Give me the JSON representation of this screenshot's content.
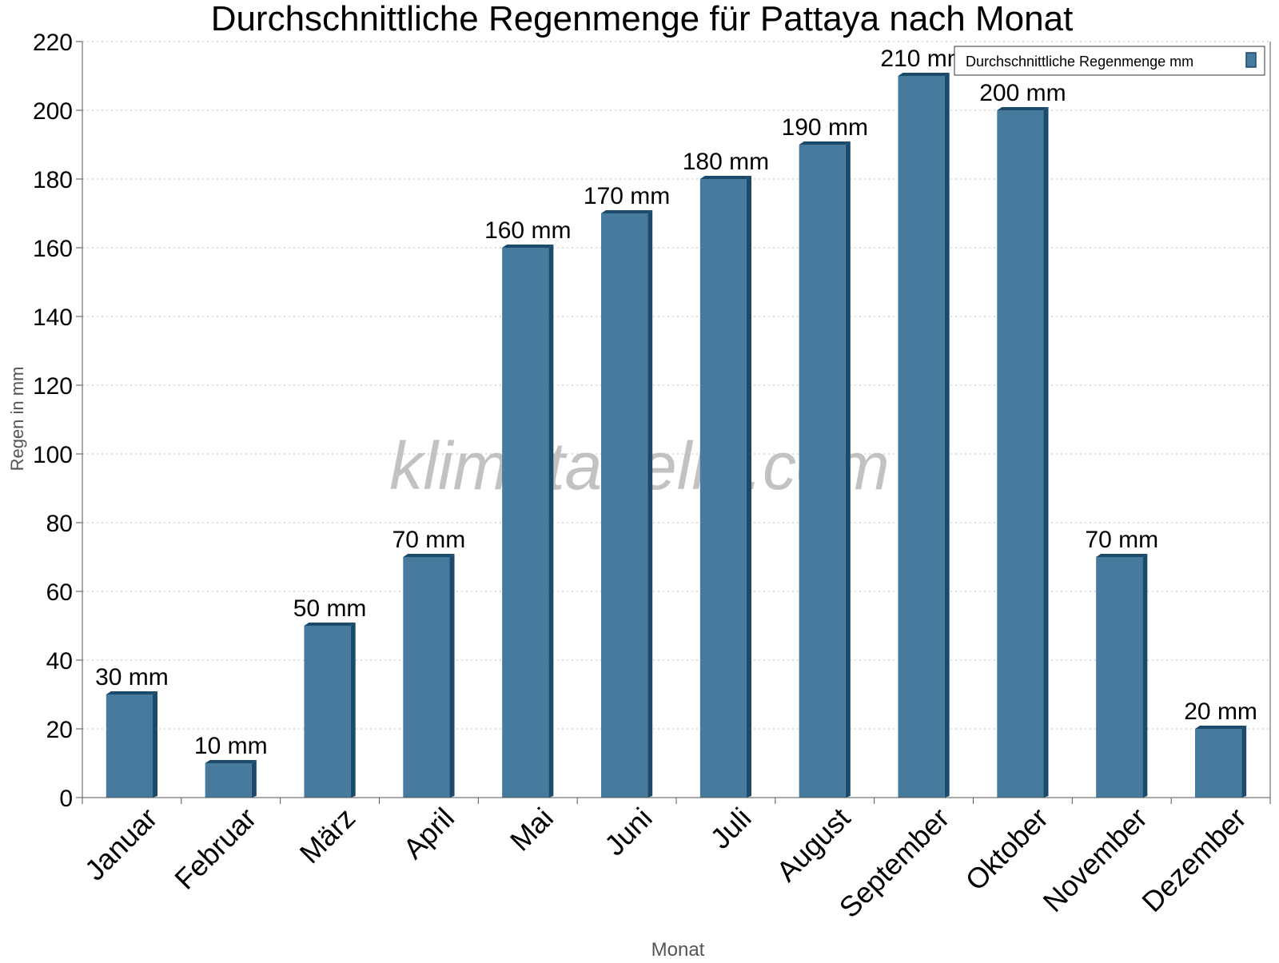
{
  "chart_data": {
    "type": "bar",
    "title": "Durchschnittliche Regenmenge für Pattaya nach Monat",
    "xlabel": "Monat",
    "ylabel": "Regen in mm",
    "categories": [
      "Januar",
      "Februar",
      "März",
      "April",
      "Mai",
      "Juni",
      "Juli",
      "August",
      "September",
      "Oktober",
      "November",
      "Dezember"
    ],
    "series": [
      {
        "name": "Durchschnittliche Regenmenge mm",
        "values": [
          30,
          10,
          50,
          70,
          160,
          170,
          180,
          190,
          210,
          200,
          70,
          20
        ]
      }
    ],
    "value_labels": [
      "30 mm",
      "10 mm",
      "50 mm",
      "70 mm",
      "160 mm",
      "170 mm",
      "180 mm",
      "190 mm",
      "210 mm",
      "200 mm",
      "70 mm",
      "20 mm"
    ],
    "ylim": [
      0,
      220
    ],
    "yticks": [
      0,
      20,
      40,
      60,
      80,
      100,
      120,
      140,
      160,
      180,
      200,
      220
    ],
    "grid": true,
    "legend_position": "top-right",
    "watermark": "klimatabelle.com",
    "colors": {
      "bar": "#467b9d",
      "bar_side": "#1c4a6b",
      "bar_top": "#1c4a6b",
      "grid": "#bbbbbb",
      "axis": "#555555",
      "watermark": "#b4b4b4"
    }
  }
}
